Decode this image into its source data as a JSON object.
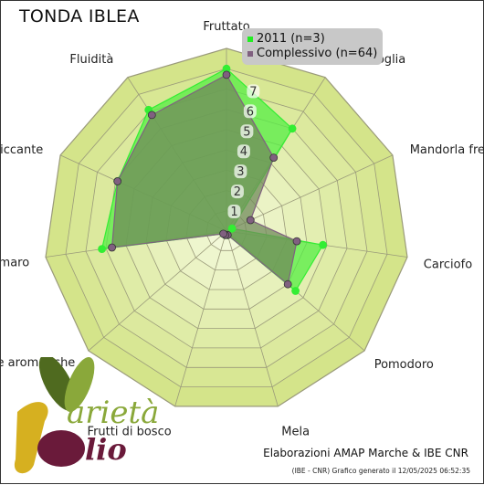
{
  "chart_data": {
    "type": "radar",
    "title": "TONDA IBLEA",
    "categories": [
      "Fruttato",
      "Erba/Foglia",
      "Mandorla fresca",
      "Carciofo",
      "Pomodoro",
      "Mela",
      "Frutti di bosco",
      "Erbe aromatiche",
      "Amaro",
      "Piccante",
      "Fluidità"
    ],
    "scale": {
      "min": 0,
      "max": 9,
      "tick_labels": [
        1,
        2,
        3,
        4,
        5,
        6,
        7
      ]
    },
    "series": [
      {
        "name": "2011 (n=3)",
        "color": "#33ee33",
        "fill": "#55ee44",
        "values": [
          8.0,
          6.0,
          0.3,
          4.8,
          4.5,
          0.2,
          0.2,
          0.2,
          6.2,
          5.9,
          7.1
        ]
      },
      {
        "name": "Complessivo (n=64)",
        "color": "#806080",
        "fill": "#708a5a",
        "values": [
          7.7,
          4.3,
          1.3,
          3.5,
          4.0,
          0.2,
          0.2,
          0.2,
          5.7,
          5.9,
          6.8
        ]
      }
    ],
    "colors": {
      "ring_outer": "#d4e48a",
      "ring_inner": "#f2f8d8",
      "grid": "#9a9a7a",
      "border": "#333333"
    }
  },
  "legend": {
    "entries": [
      {
        "label": "2011 (n=3)",
        "color": "#22ee22"
      },
      {
        "label": "Complessivo (n=64)",
        "color": "#806080"
      }
    ]
  },
  "footer": "Elaborazioni AMAP Marche & IBE CNR",
  "footnote": "(IBE - CNR) Grafico generato il 12/05/2025 06:52:35",
  "logo": {
    "text": "Varietà Olio",
    "colors": {
      "olive_dark": "#4f6a1f",
      "olive_light": "#8aa83a",
      "gold": "#d6b020",
      "plum": "#6a1a3a"
    }
  }
}
